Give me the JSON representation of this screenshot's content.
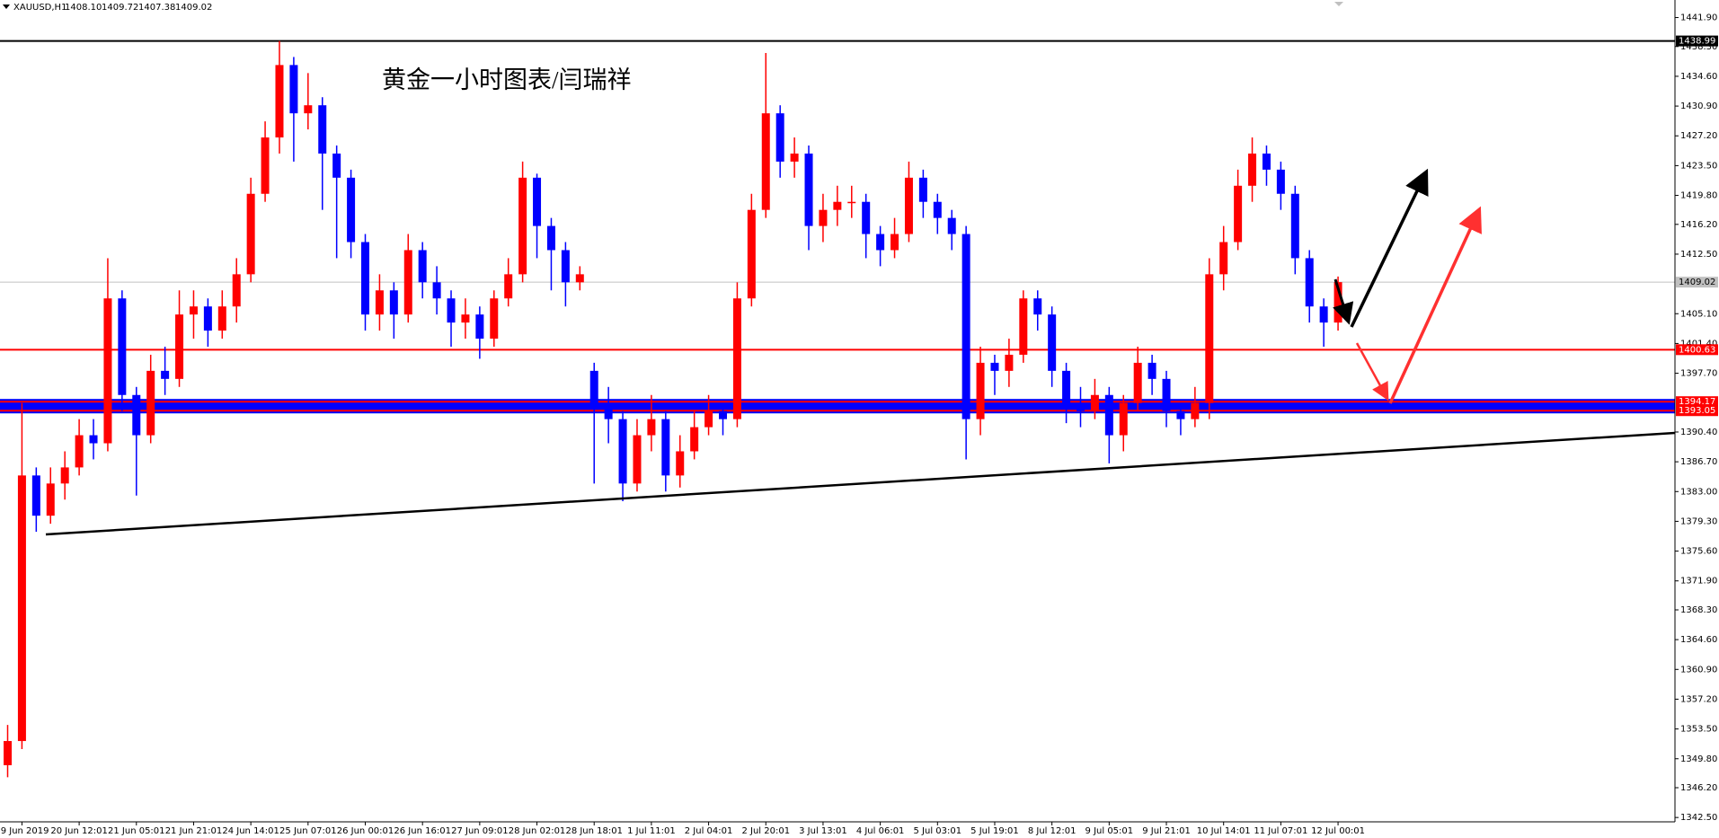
{
  "chart_data": {
    "type": "candlestick",
    "title": "XAUUSD,H1",
    "header_values": [
      "1408.10",
      "1409.72",
      "1407.38",
      "1409.02"
    ],
    "annotation": "黄金一小时图表/闫瑞祥",
    "categories": [
      null,
      "19 Jun 2019",
      null,
      null,
      null,
      "20 Jun 12:01",
      null,
      null,
      null,
      "21 Jun 05:01",
      null,
      null,
      null,
      "21 Jun 21:01",
      null,
      null,
      null,
      "24 Jun 14:01",
      null,
      null,
      null,
      "25 Jun 07:01",
      null,
      null,
      null,
      "26 Jun 00:01",
      null,
      null,
      null,
      "26 Jun 16:01",
      null,
      null,
      null,
      "27 Jun 09:01",
      null,
      null,
      null,
      "28 Jun 02:01",
      null,
      null,
      null,
      "28 Jun 18:01",
      null,
      null,
      null,
      "1 Jul 11:01",
      null,
      null,
      null,
      "2 Jul 04:01",
      null,
      null,
      null,
      "2 Jul 20:01",
      null,
      null,
      null,
      "3 Jul 13:01",
      null,
      null,
      null,
      "4 Jul 06:01",
      null,
      null,
      null,
      "5 Jul 03:01",
      null,
      null,
      null,
      "5 Jul 19:01",
      null,
      null,
      null,
      "8 Jul 12:01",
      null,
      null,
      null,
      "9 Jul 05:01",
      null,
      null,
      null,
      "9 Jul 21:01",
      null,
      null,
      null,
      "10 Jul 14:01",
      null,
      null,
      null,
      "11 Jul 07:01",
      null,
      null,
      null,
      "12 Jul 00:01"
    ],
    "open": [
      1349,
      1352,
      1385,
      1380,
      1384,
      1386,
      1390,
      1389,
      1407,
      1395,
      1390,
      1398,
      1397,
      1405,
      1406,
      1403,
      1406,
      1410,
      1420,
      1427,
      1436,
      1430,
      1431,
      1425,
      1422,
      1414,
      1405,
      1408,
      1405,
      1413,
      1409,
      1407,
      1404,
      1405,
      1402,
      1407,
      1410,
      1422,
      1416,
      1413,
      1409,
      1398,
      1394,
      1392,
      1384,
      1390,
      1392,
      1385,
      1388,
      1391,
      1393,
      1392,
      1407,
      1418,
      1430,
      1424,
      1425,
      1416,
      1418,
      1419,
      1419,
      1415,
      1413,
      1415,
      1422,
      1419,
      1417,
      1415,
      1392,
      1399,
      1398,
      1400,
      1407,
      1405,
      1398,
      1394,
      1393,
      1395,
      1390,
      1394,
      1399,
      1397,
      1393,
      1392,
      1394,
      1410,
      1414,
      1421,
      1425,
      1423,
      1420,
      1412,
      1406,
      1404
    ],
    "high": [
      1354,
      1394,
      1386,
      1386,
      1388,
      1392,
      1392,
      1412,
      1408,
      1396,
      1400,
      1401,
      1408,
      1408,
      1407,
      1408,
      1412,
      1422,
      1429,
      1438.99,
      1437,
      1435,
      1432,
      1426,
      1423,
      1415,
      1410,
      1409,
      1415,
      1414,
      1411,
      1408,
      1407,
      1406,
      1408,
      1412,
      1424,
      1422.5,
      1417,
      1414,
      1411,
      1399,
      1396,
      1393,
      1392,
      1395,
      1393,
      1390,
      1393,
      1395,
      1394,
      1409,
      1420,
      1437.5,
      1431,
      1427,
      1426,
      1420,
      1421,
      1421,
      1420,
      1416,
      1417,
      1424,
      1423,
      1420,
      1418,
      1416,
      1401,
      1400,
      1402,
      1408,
      1408,
      1406,
      1399,
      1396,
      1397,
      1396,
      1395,
      1401,
      1400,
      1398,
      1394,
      1396,
      1412,
      1416,
      1423,
      1427,
      1426,
      1424,
      1421,
      1413,
      1407,
      1409.72
    ],
    "low": [
      1347.5,
      1351,
      1378,
      1379,
      1382,
      1385,
      1387,
      1388,
      1393,
      1382.5,
      1389,
      1395,
      1396,
      1402,
      1401,
      1402,
      1404,
      1409,
      1419,
      1425,
      1424,
      1428,
      1418,
      1412,
      1412,
      1403,
      1403,
      1402,
      1404,
      1407,
      1405,
      1401,
      1402,
      1399.5,
      1401,
      1406,
      1409,
      1412,
      1408,
      1406,
      1408,
      1384,
      1389,
      1381.8,
      1383,
      1388,
      1383,
      1383.5,
      1387,
      1390,
      1390,
      1391,
      1406,
      1417,
      1422,
      1422,
      1413,
      1414,
      1416,
      1417,
      1412,
      1411,
      1412,
      1414,
      1417,
      1415,
      1413,
      1387,
      1390,
      1395,
      1396,
      1399,
      1403,
      1396,
      1391.5,
      1391,
      1392,
      1386.5,
      1388,
      1393,
      1395,
      1391,
      1390,
      1391,
      1392,
      1408,
      1413,
      1419,
      1421,
      1418,
      1410,
      1404,
      1401,
      1403
    ],
    "close": [
      1352,
      1385,
      1380,
      1384,
      1386,
      1390,
      1389,
      1407,
      1395,
      1390,
      1398,
      1397,
      1405,
      1406,
      1403,
      1406,
      1410,
      1420,
      1427,
      1436,
      1430,
      1431,
      1425,
      1422,
      1414,
      1405,
      1408,
      1405,
      1413,
      1409,
      1407,
      1404,
      1405,
      1402,
      1407,
      1410,
      1422,
      1416,
      1413,
      1409,
      1410,
      1394,
      1392,
      1384,
      1390,
      1392,
      1385,
      1388,
      1391,
      1393,
      1392,
      1407,
      1418,
      1430,
      1424,
      1425,
      1416,
      1418,
      1419,
      1419,
      1415,
      1413,
      1415,
      1422,
      1419,
      1417,
      1415,
      1392,
      1399,
      1398,
      1400,
      1407,
      1405,
      1398,
      1394,
      1393,
      1395,
      1390,
      1394,
      1399,
      1397,
      1393,
      1392,
      1394,
      1410,
      1414,
      1421,
      1425,
      1423,
      1420,
      1412,
      1406,
      1404,
      1409.02
    ],
    "up_color": "#ff0000",
    "down_color": "#0000ff",
    "ylim": [
      1341.96,
      1444.08
    ],
    "yticks": [
      {
        "value": 1441.9,
        "label": "1441.90"
      },
      {
        "value": 1438.3,
        "label": "1438.30"
      },
      {
        "value": 1434.6,
        "label": "1434.60"
      },
      {
        "value": 1430.9,
        "label": "1430.90"
      },
      {
        "value": 1427.2,
        "label": "1427.20"
      },
      {
        "value": 1423.5,
        "label": "1423.50"
      },
      {
        "value": 1419.8,
        "label": "1419.80"
      },
      {
        "value": 1416.2,
        "label": "1416.20"
      },
      {
        "value": 1412.5,
        "label": "1412.50"
      },
      {
        "value": 1405.1,
        "label": "1405.10"
      },
      {
        "value": 1401.4,
        "label": "1401.40"
      },
      {
        "value": 1397.7,
        "label": "1397.70"
      },
      {
        "value": 1390.4,
        "label": "1390.40"
      },
      {
        "value": 1386.7,
        "label": "1386.70"
      },
      {
        "value": 1383.0,
        "label": "1383.00"
      },
      {
        "value": 1379.3,
        "label": "1379.30"
      },
      {
        "value": 1375.6,
        "label": "1375.60"
      },
      {
        "value": 1371.9,
        "label": "1371.90"
      },
      {
        "value": 1368.3,
        "label": "1368.30"
      },
      {
        "value": 1364.6,
        "label": "1364.60"
      },
      {
        "value": 1360.9,
        "label": "1360.90"
      },
      {
        "value": 1357.2,
        "label": "1357.20"
      },
      {
        "value": 1353.5,
        "label": "1353.50"
      },
      {
        "value": 1349.8,
        "label": "1349.80"
      },
      {
        "value": 1346.2,
        "label": "1346.20"
      },
      {
        "value": 1342.5,
        "label": "1342.50"
      }
    ],
    "levels": [
      {
        "value": 1438.99,
        "color": "#000000"
      },
      {
        "value": 1409.02,
        "color": "#c0c0c0"
      },
      {
        "value": 1400.63,
        "color": "#ff0000"
      },
      {
        "value": 1394.17,
        "color": "#ff0000"
      },
      {
        "value": 1393.05,
        "color": "#ff0000"
      }
    ],
    "band_color": "#0000ff"
  }
}
